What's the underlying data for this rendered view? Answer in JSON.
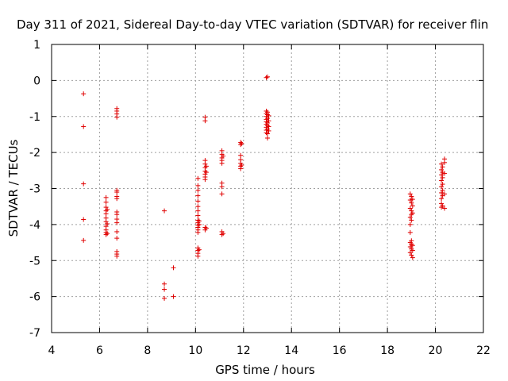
{
  "chart_data": {
    "type": "scatter",
    "title": "Day 311 of 2021, Sidereal Day-to-day VTEC variation (SDTVAR) for receiver flin",
    "xlabel": "GPS time / hours",
    "ylabel": "SDTVAR / TECUs",
    "xlim": [
      4,
      22
    ],
    "ylim": [
      -7,
      1
    ],
    "xticks": [
      "4",
      "6",
      "8",
      "10",
      "12",
      "14",
      "16",
      "18",
      "20",
      "22"
    ],
    "yticks": [
      "1",
      "0",
      "-1",
      "-2",
      "-3",
      "-4",
      "-5",
      "-6",
      "-7"
    ],
    "grid": true,
    "marker": "+",
    "color": "#e00000",
    "series": [
      {
        "name": "SDTVAR",
        "points": [
          [
            5.33,
            -0.37
          ],
          [
            5.33,
            -1.28
          ],
          [
            5.33,
            -2.87
          ],
          [
            5.33,
            -3.86
          ],
          [
            5.33,
            -4.44
          ],
          [
            6.27,
            -3.25
          ],
          [
            6.27,
            -3.38
          ],
          [
            6.27,
            -3.52
          ],
          [
            6.27,
            -3.62
          ],
          [
            6.27,
            -3.7
          ],
          [
            6.27,
            -3.82
          ],
          [
            6.27,
            -3.92
          ],
          [
            6.27,
            -4.05
          ],
          [
            6.27,
            -4.15
          ],
          [
            6.27,
            -4.22
          ],
          [
            6.27,
            -4.28
          ],
          [
            6.32,
            -3.58
          ],
          [
            6.32,
            -3.98
          ],
          [
            6.32,
            -4.25
          ],
          [
            6.72,
            -0.78
          ],
          [
            6.72,
            -0.85
          ],
          [
            6.72,
            -0.93
          ],
          [
            6.72,
            -1.02
          ],
          [
            6.72,
            -3.05
          ],
          [
            6.72,
            -3.1
          ],
          [
            6.72,
            -3.22
          ],
          [
            6.72,
            -3.28
          ],
          [
            6.72,
            -3.65
          ],
          [
            6.72,
            -3.72
          ],
          [
            6.72,
            -3.85
          ],
          [
            6.72,
            -3.95
          ],
          [
            6.72,
            -4.2
          ],
          [
            6.72,
            -4.38
          ],
          [
            6.72,
            -4.75
          ],
          [
            6.72,
            -4.82
          ],
          [
            6.72,
            -4.88
          ],
          [
            8.7,
            -3.62
          ],
          [
            8.7,
            -5.65
          ],
          [
            8.7,
            -5.8
          ],
          [
            8.7,
            -6.05
          ],
          [
            9.08,
            -5.2
          ],
          [
            9.08,
            -6.0
          ],
          [
            10.1,
            -2.72
          ],
          [
            10.1,
            -2.92
          ],
          [
            10.1,
            -3.05
          ],
          [
            10.1,
            -3.2
          ],
          [
            10.1,
            -3.35
          ],
          [
            10.1,
            -3.5
          ],
          [
            10.1,
            -3.62
          ],
          [
            10.1,
            -3.75
          ],
          [
            10.1,
            -3.88
          ],
          [
            10.1,
            -3.95
          ],
          [
            10.1,
            -4.02
          ],
          [
            10.1,
            -4.08
          ],
          [
            10.1,
            -4.15
          ],
          [
            10.1,
            -4.22
          ],
          [
            10.1,
            -4.65
          ],
          [
            10.1,
            -4.72
          ],
          [
            10.1,
            -4.8
          ],
          [
            10.1,
            -4.88
          ],
          [
            10.15,
            -3.9
          ],
          [
            10.15,
            -4.0
          ],
          [
            10.15,
            -4.7
          ],
          [
            10.4,
            -1.02
          ],
          [
            10.4,
            -1.12
          ],
          [
            10.4,
            -2.22
          ],
          [
            10.4,
            -2.32
          ],
          [
            10.4,
            -2.42
          ],
          [
            10.4,
            -2.52
          ],
          [
            10.4,
            -2.6
          ],
          [
            10.4,
            -2.68
          ],
          [
            10.4,
            -2.75
          ],
          [
            10.4,
            -4.08
          ],
          [
            10.4,
            -4.15
          ],
          [
            10.45,
            -2.38
          ],
          [
            10.45,
            -2.55
          ],
          [
            10.45,
            -4.1
          ],
          [
            11.1,
            -1.95
          ],
          [
            11.1,
            -2.05
          ],
          [
            11.1,
            -2.15
          ],
          [
            11.1,
            -2.22
          ],
          [
            11.1,
            -2.3
          ],
          [
            11.1,
            -2.85
          ],
          [
            11.1,
            -2.95
          ],
          [
            11.1,
            -3.15
          ],
          [
            11.1,
            -4.2
          ],
          [
            11.1,
            -4.28
          ],
          [
            11.15,
            -2.1
          ],
          [
            11.15,
            -4.25
          ],
          [
            11.88,
            -1.72
          ],
          [
            11.88,
            -1.78
          ],
          [
            11.88,
            -2.08
          ],
          [
            11.88,
            -2.2
          ],
          [
            11.88,
            -2.3
          ],
          [
            11.88,
            -2.38
          ],
          [
            11.88,
            -2.45
          ],
          [
            11.92,
            -1.75
          ],
          [
            11.92,
            -2.35
          ],
          [
            12.95,
            0.08
          ],
          [
            12.95,
            -0.85
          ],
          [
            12.95,
            -0.92
          ],
          [
            12.95,
            -1.0
          ],
          [
            12.95,
            -1.08
          ],
          [
            12.95,
            -1.15
          ],
          [
            12.95,
            -1.22
          ],
          [
            12.95,
            -1.3
          ],
          [
            12.95,
            -1.38
          ],
          [
            12.95,
            -1.45
          ],
          [
            13.0,
            0.1
          ],
          [
            13.0,
            -0.88
          ],
          [
            13.0,
            -0.95
          ],
          [
            13.0,
            -1.05
          ],
          [
            13.0,
            -1.18
          ],
          [
            13.0,
            -1.25
          ],
          [
            13.0,
            -1.35
          ],
          [
            13.0,
            -1.48
          ],
          [
            13.0,
            -1.6
          ],
          [
            13.05,
            -0.98
          ],
          [
            13.05,
            -1.12
          ],
          [
            13.05,
            -1.28
          ],
          [
            13.05,
            -1.4
          ],
          [
            18.95,
            -3.15
          ],
          [
            18.95,
            -3.32
          ],
          [
            18.95,
            -3.55
          ],
          [
            18.95,
            -3.8
          ],
          [
            18.95,
            -4.0
          ],
          [
            18.95,
            -4.22
          ],
          [
            18.95,
            -4.5
          ],
          [
            18.95,
            -4.62
          ],
          [
            18.95,
            -4.78
          ],
          [
            19.0,
            -3.22
          ],
          [
            19.0,
            -3.4
          ],
          [
            19.0,
            -3.62
          ],
          [
            19.0,
            -3.72
          ],
          [
            19.0,
            -3.88
          ],
          [
            19.0,
            -4.45
          ],
          [
            19.0,
            -4.55
          ],
          [
            19.0,
            -4.68
          ],
          [
            19.0,
            -4.85
          ],
          [
            19.05,
            -3.3
          ],
          [
            19.05,
            -3.48
          ],
          [
            19.05,
            -3.68
          ],
          [
            19.05,
            -4.58
          ],
          [
            19.05,
            -4.72
          ],
          [
            19.05,
            -4.92
          ],
          [
            20.25,
            -2.32
          ],
          [
            20.25,
            -2.48
          ],
          [
            20.25,
            -2.62
          ],
          [
            20.25,
            -2.78
          ],
          [
            20.25,
            -2.95
          ],
          [
            20.25,
            -3.12
          ],
          [
            20.25,
            -3.28
          ],
          [
            20.25,
            -3.42
          ],
          [
            20.25,
            -3.52
          ],
          [
            20.3,
            -2.4
          ],
          [
            20.3,
            -2.55
          ],
          [
            20.3,
            -2.7
          ],
          [
            20.3,
            -2.88
          ],
          [
            20.3,
            -3.05
          ],
          [
            20.3,
            -3.2
          ],
          [
            20.3,
            -3.48
          ],
          [
            20.38,
            -2.18
          ],
          [
            20.38,
            -2.28
          ],
          [
            20.38,
            -2.58
          ],
          [
            20.38,
            -3.15
          ],
          [
            20.38,
            -3.55
          ]
        ]
      }
    ]
  }
}
